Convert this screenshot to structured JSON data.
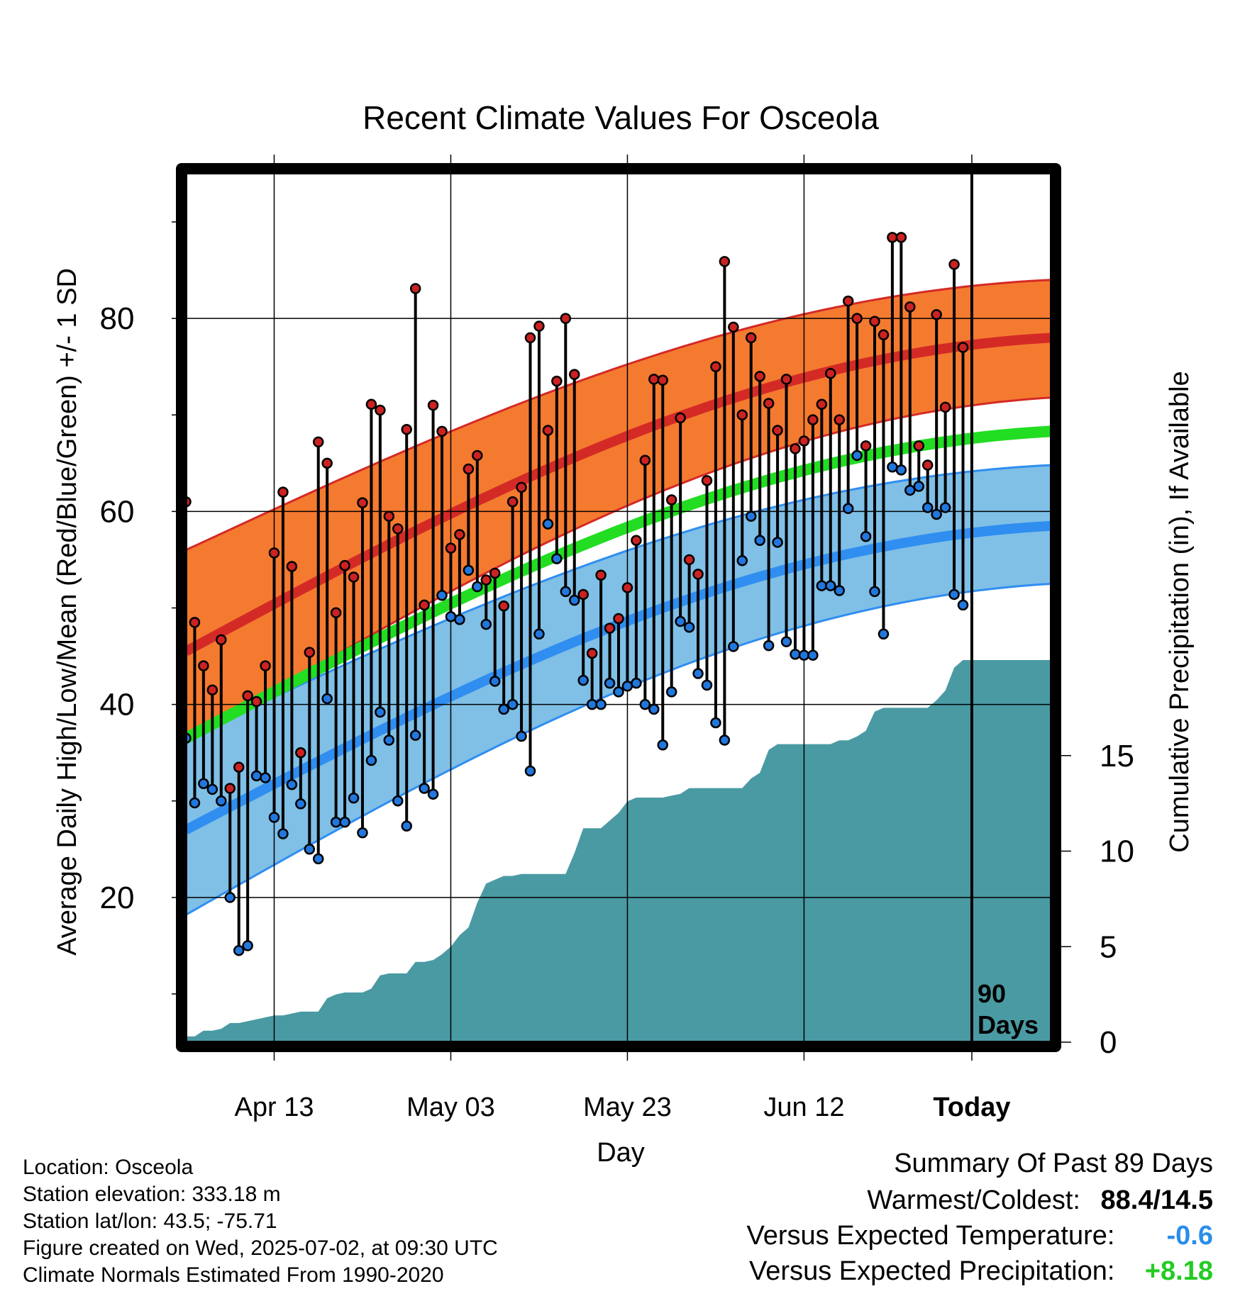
{
  "chart_data": {
    "type": "line",
    "title": "Recent Climate Values For Osceola",
    "xlabel": "Day",
    "ylabel": "Average Daily High/Low/Mean (Red/Blue/Green) +/- 1 SD",
    "y2label": "Cumulative Precipitation (in), If Available",
    "ylim": [
      5,
      95
    ],
    "y2lim": [
      0,
      20
    ],
    "yticks": [
      20,
      40,
      60,
      80
    ],
    "y2ticks": [
      0,
      5,
      10,
      15
    ],
    "x_range_days": [
      -89,
      9
    ],
    "x_ticks": [
      {
        "offset": -79,
        "label": "Apr 13"
      },
      {
        "offset": -59,
        "label": "May 03"
      },
      {
        "offset": -39,
        "label": "May 23"
      },
      {
        "offset": -19,
        "label": "Jun 12"
      },
      {
        "offset": 0,
        "label": "Today"
      }
    ],
    "today_marker": {
      "offset": 0,
      "label_line1": "90",
      "label_line2": "Days"
    },
    "grid": true,
    "normals": {
      "high_mean_start": 45.5,
      "high_mean_end": 78.0,
      "high_upper_start": 56.0,
      "high_upper_end": 84.0,
      "high_lower_start": 36.0,
      "high_lower_end": 71.8,
      "mean_start": 36.5,
      "mean_end": 68.3,
      "low_mean_start": 27.0,
      "low_mean_end": 58.5,
      "low_upper_start": 36.5,
      "low_upper_end": 64.8,
      "low_lower_start": 18.2,
      "low_lower_end": 52.5
    },
    "colors": {
      "high_band": "#f47a30",
      "high_line": "#d42a26",
      "mean_line": "#22dd22",
      "low_band": "#80bfe6",
      "low_line": "#2f8ef0",
      "precip": "#4a9aa3",
      "high_point": "#cc2222",
      "low_point": "#2277dd"
    },
    "series": [
      {
        "name": "High",
        "values": [
          61.0,
          48.5,
          44.0,
          41.5,
          46.7,
          31.3,
          33.5,
          40.9,
          40.3,
          44.0,
          55.7,
          62.0,
          54.3,
          35.0,
          45.4,
          67.2,
          65.0,
          49.5,
          54.4,
          53.2,
          60.9,
          71.1,
          70.5,
          59.5,
          58.2,
          68.5,
          83.1,
          50.3,
          71.0,
          68.3,
          56.2,
          57.6,
          64.4,
          65.8,
          52.9,
          53.6,
          50.2,
          61.0,
          62.5,
          78.0,
          79.2,
          68.4,
          73.5,
          80.0,
          74.2,
          51.4,
          45.3,
          53.4,
          47.9,
          48.9,
          52.1,
          57.0,
          65.3,
          73.7,
          73.6,
          61.2,
          69.7,
          55.0,
          53.5,
          63.2,
          75.0,
          85.9,
          79.1,
          70.0,
          78.0,
          74.0,
          71.2,
          68.4,
          73.7,
          66.5,
          67.3,
          69.5,
          71.1,
          74.3,
          69.5,
          81.8,
          80.0,
          66.8,
          79.7,
          78.3,
          88.4,
          88.4,
          81.2,
          66.8,
          64.8,
          80.4,
          70.8,
          85.6,
          77.0
        ]
      },
      {
        "name": "Low",
        "values": [
          36.5,
          29.8,
          31.8,
          31.2,
          30.0,
          20.0,
          14.5,
          15.0,
          32.6,
          32.4,
          28.3,
          26.6,
          31.7,
          29.7,
          25.0,
          24.0,
          40.6,
          27.8,
          27.8,
          30.3,
          26.7,
          34.2,
          39.2,
          36.3,
          30.0,
          27.4,
          36.8,
          31.3,
          30.7,
          51.3,
          49.1,
          48.8,
          53.9,
          52.2,
          48.3,
          42.4,
          39.5,
          40.0,
          36.7,
          33.1,
          47.3,
          58.7,
          55.1,
          51.7,
          50.8,
          42.5,
          40.0,
          40.0,
          42.2,
          41.3,
          41.9,
          42.2,
          40.0,
          39.5,
          35.8,
          41.3,
          48.6,
          48.0,
          43.2,
          42.0,
          38.1,
          36.3,
          46.0,
          54.9,
          59.5,
          57.0,
          46.1,
          56.8,
          46.5,
          45.2,
          45.1,
          45.1,
          52.3,
          52.3,
          51.8,
          60.3,
          65.8,
          57.4,
          51.7,
          47.3,
          64.6,
          64.3,
          62.2,
          62.6,
          60.4,
          59.7,
          60.4,
          51.4,
          50.3
        ]
      },
      {
        "name": "Cumulative Precipitation",
        "values": [
          0.3,
          0.3,
          0.6,
          0.6,
          0.7,
          1.0,
          1.0,
          1.1,
          1.2,
          1.3,
          1.4,
          1.4,
          1.5,
          1.6,
          1.6,
          1.6,
          2.3,
          2.5,
          2.6,
          2.6,
          2.6,
          2.8,
          3.5,
          3.6,
          3.6,
          3.6,
          4.2,
          4.2,
          4.3,
          4.6,
          5.0,
          5.6,
          6.0,
          7.3,
          8.3,
          8.5,
          8.7,
          8.7,
          8.8,
          8.8,
          8.8,
          8.8,
          8.8,
          8.8,
          9.9,
          11.2,
          11.2,
          11.2,
          11.6,
          12.0,
          12.6,
          12.8,
          12.8,
          12.8,
          12.8,
          12.9,
          13.0,
          13.3,
          13.3,
          13.3,
          13.3,
          13.3,
          13.3,
          13.3,
          13.8,
          14.1,
          15.3,
          15.6,
          15.6,
          15.6,
          15.6,
          15.6,
          15.6,
          15.6,
          15.8,
          15.8,
          16.0,
          16.3,
          17.3,
          17.5,
          17.5,
          17.5,
          17.5,
          17.5,
          17.5,
          17.9,
          18.4,
          19.6,
          20.0
        ]
      }
    ]
  },
  "footer": {
    "location": "Location: Osceola",
    "elevation": "Station elevation: 333.18 m",
    "latlon": "Station lat/lon: 43.5; -75.71",
    "created": "Figure created on Wed, 2025-07-02, at 09:30 UTC",
    "normals": "Climate Normals Estimated From 1990-2020"
  },
  "summary": {
    "title": "Summary Of Past 89 Days",
    "warmest_coldest_label": "Warmest/Coldest:",
    "warmest_coldest_value": "88.4/14.5",
    "temp_label": "Versus Expected Temperature:",
    "temp_value": "-0.6",
    "temp_color": "#2a8ee8",
    "precip_label": "Versus Expected Precipitation:",
    "precip_value": "+8.18",
    "precip_color": "#22cc22"
  }
}
